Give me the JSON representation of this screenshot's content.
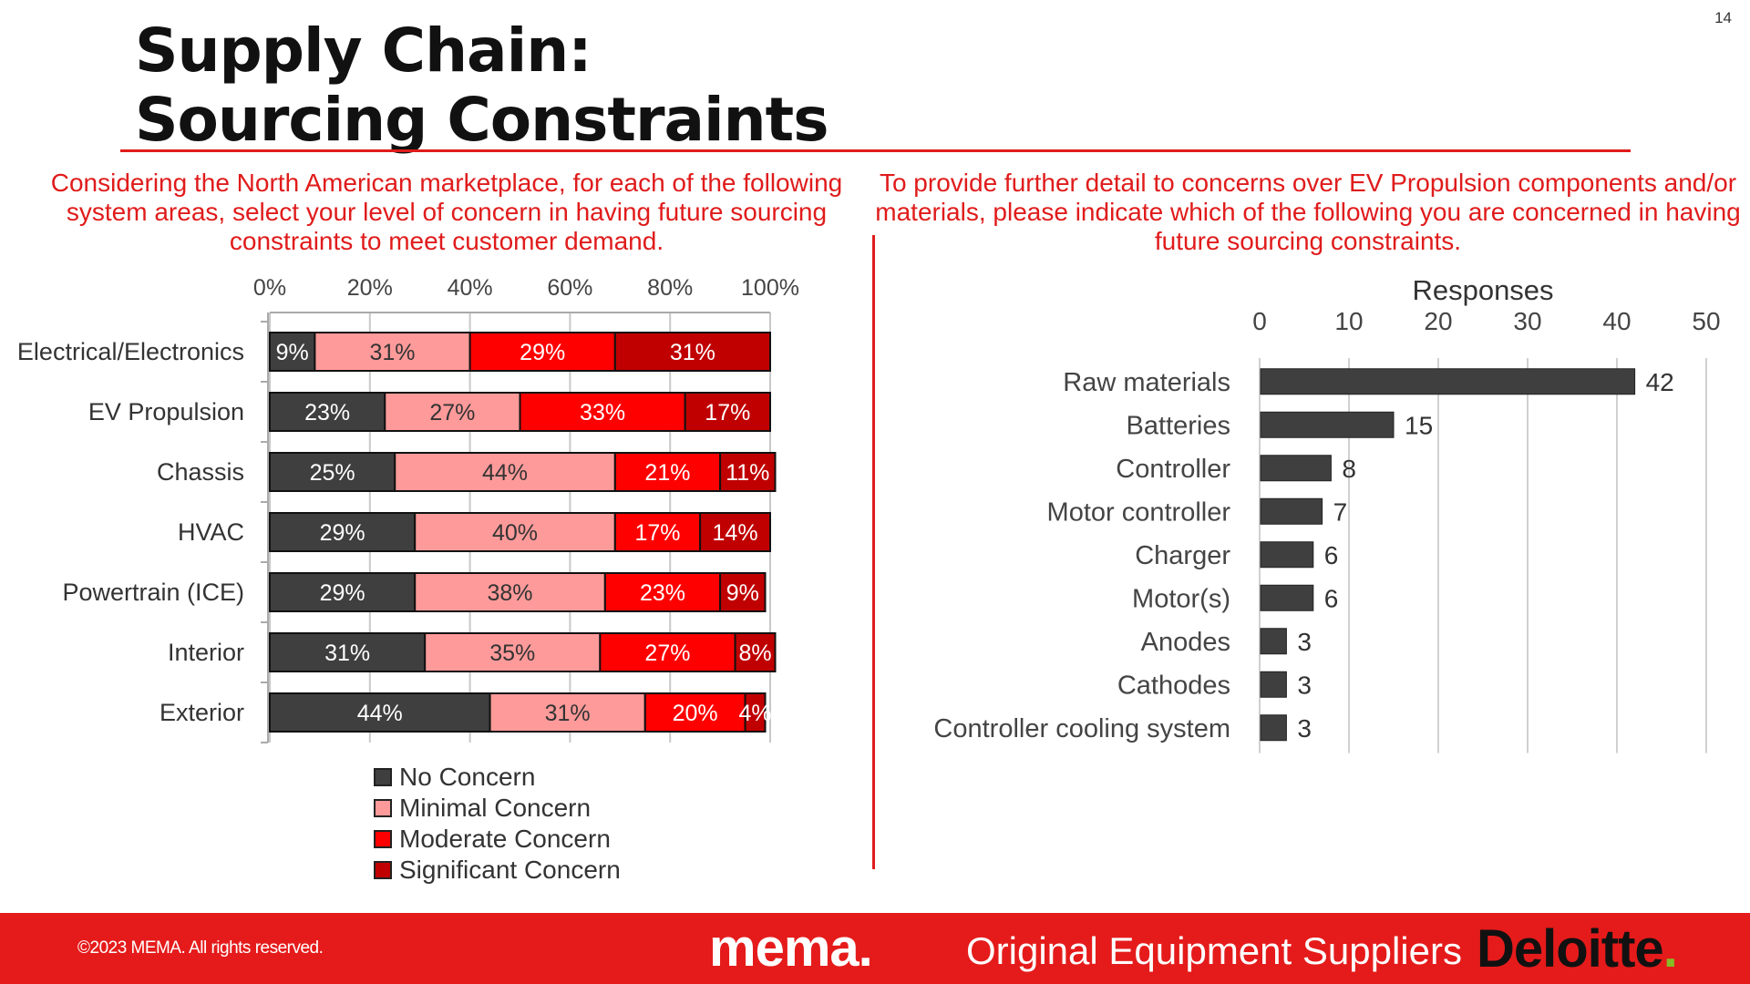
{
  "page_number": "14",
  "title_lines": [
    "Supply Chain:",
    "Sourcing Constraints"
  ],
  "colors": {
    "accent": "#e01b1b",
    "no_concern": "#3f3f3f",
    "minimal_concern": "#ff9a9a",
    "moderate_concern": "#ff0000",
    "significant_concern": "#c00000",
    "bar": "#3f3f3f",
    "deloitte_green": "#86bc25"
  },
  "left_question": "Considering the North American marketplace, for each of the following system areas, select your level of concern in having future sourcing constraints to meet customer demand.",
  "right_question": "To provide further detail to concerns over EV Propulsion components and/or materials, please indicate which of the following you are concerned in having future sourcing constraints.",
  "chart_data": [
    {
      "type": "bar",
      "orientation": "horizontal",
      "stacked": true,
      "categories": [
        "Electrical/Electronics",
        "EV Propulsion",
        "Chassis",
        "HVAC",
        "Powertrain (ICE)",
        "Interior",
        "Exterior"
      ],
      "series": [
        {
          "name": "No Concern",
          "values": [
            9,
            23,
            25,
            29,
            29,
            31,
            44
          ],
          "color": "#3f3f3f",
          "label_color": "#ffffff"
        },
        {
          "name": "Minimal Concern",
          "values": [
            31,
            27,
            44,
            40,
            38,
            35,
            31
          ],
          "color": "#ff9a9a",
          "label_color": "#333333"
        },
        {
          "name": "Moderate Concern",
          "values": [
            29,
            33,
            21,
            17,
            23,
            27,
            20
          ],
          "color": "#ff0000",
          "label_color": "#ffffff"
        },
        {
          "name": "Significant Concern",
          "values": [
            31,
            17,
            11,
            14,
            9,
            8,
            4
          ],
          "color": "#c00000",
          "label_color": "#ffffff"
        }
      ],
      "x_ticks": [
        "0%",
        "20%",
        "40%",
        "60%",
        "80%",
        "100%"
      ],
      "xlim": [
        0,
        100
      ],
      "legend": {
        "position": "bottom",
        "items": [
          "No Concern",
          "Minimal Concern",
          "Moderate Concern",
          "Significant Concern"
        ]
      },
      "grid": true
    },
    {
      "type": "bar",
      "orientation": "horizontal",
      "categories": [
        "Raw materials",
        "Batteries",
        "Controller",
        "Motor controller",
        "Charger",
        "Motor(s)",
        "Anodes",
        "Cathodes",
        "Controller cooling system"
      ],
      "values": [
        42,
        15,
        8,
        7,
        6,
        6,
        3,
        3,
        3
      ],
      "xlabel": "Responses",
      "x_ticks": [
        "0",
        "10",
        "20",
        "30",
        "40",
        "50"
      ],
      "xlim": [
        0,
        50
      ],
      "grid": true
    }
  ],
  "footer": {
    "copyright": "©2023 MEMA. All rights reserved.",
    "mema_wordmark": "mema",
    "mema_tagline": "Original Equipment Suppliers",
    "deloitte_wordmark": "Deloitte"
  }
}
